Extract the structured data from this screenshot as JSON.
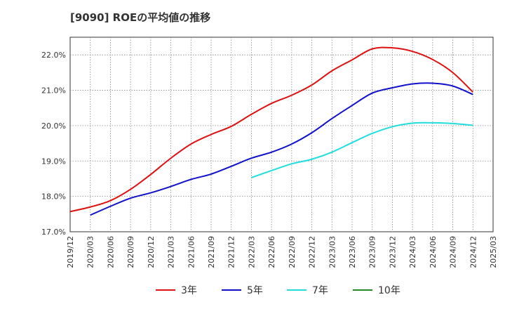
{
  "chart_data": {
    "type": "line",
    "title": "[9090]  ROEの平均値の推移",
    "xlabel": "",
    "ylabel": "",
    "ylim": [
      17.0,
      22.5
    ],
    "yticks": [
      17.0,
      18.0,
      19.0,
      20.0,
      21.0,
      22.0
    ],
    "ytick_labels": [
      "17.0%",
      "18.0%",
      "19.0%",
      "20.0%",
      "21.0%",
      "22.0%"
    ],
    "x_tick_labels": [
      "2019/12",
      "2020/03",
      "2020/06",
      "2020/09",
      "2020/12",
      "2021/03",
      "2021/06",
      "2021/09",
      "2021/12",
      "2022/03",
      "2022/06",
      "2022/09",
      "2022/12",
      "2023/03",
      "2023/06",
      "2023/09",
      "2023/12",
      "2024/03",
      "2024/06",
      "2024/09",
      "2024/12",
      "2025/03"
    ],
    "grid": true,
    "legend_position": "bottom",
    "series": [
      {
        "name": "3年",
        "color": "#dd1111",
        "start_index": 0,
        "values": [
          17.57,
          17.7,
          17.88,
          18.2,
          18.62,
          19.08,
          19.48,
          19.75,
          19.98,
          20.32,
          20.63,
          20.86,
          21.15,
          21.55,
          21.86,
          22.17,
          22.2,
          22.1,
          21.87,
          21.5,
          20.95
        ]
      },
      {
        "name": "5年",
        "color": "#1111cc",
        "start_index": 1,
        "values": [
          17.47,
          17.72,
          17.95,
          18.1,
          18.28,
          18.48,
          18.63,
          18.85,
          19.08,
          19.25,
          19.48,
          19.8,
          20.2,
          20.57,
          20.92,
          21.07,
          21.18,
          21.2,
          21.12,
          20.88
        ]
      },
      {
        "name": "7年",
        "color": "#22dddd",
        "start_index": 9,
        "values": [
          18.53,
          18.73,
          18.92,
          19.05,
          19.25,
          19.52,
          19.78,
          19.97,
          20.07,
          20.08,
          20.06,
          20.01
        ]
      },
      {
        "name": "10年",
        "color": "#228822",
        "start_index": 0,
        "values": []
      }
    ]
  }
}
